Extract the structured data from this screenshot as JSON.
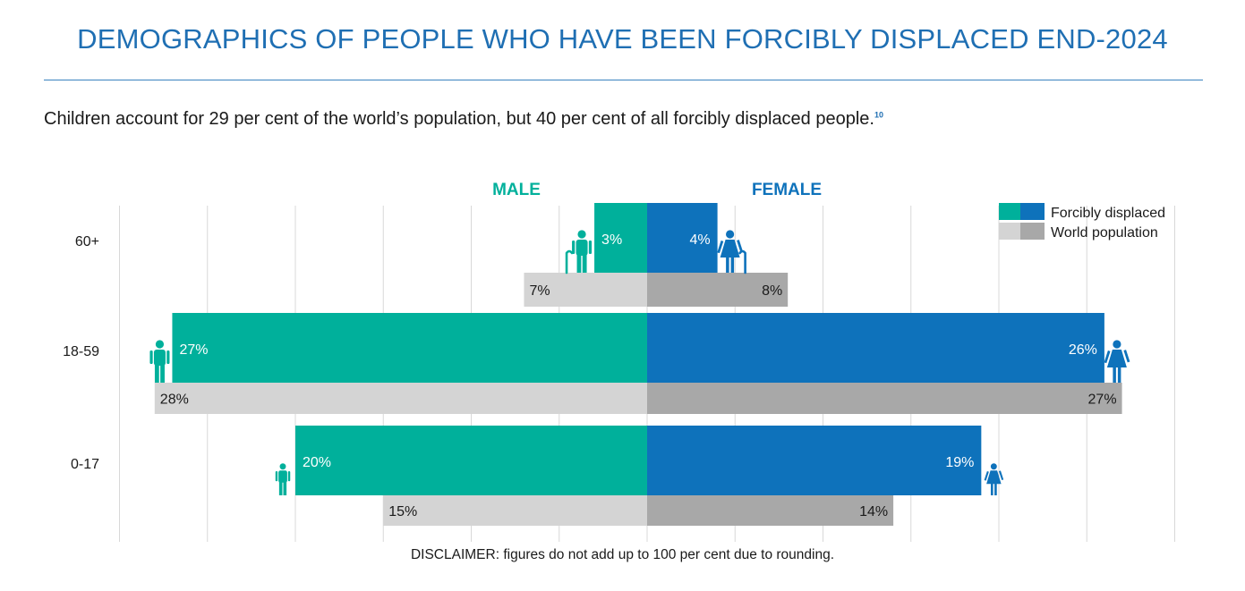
{
  "title": "DEMOGRAPHICS OF PEOPLE WHO HAVE BEEN FORCIBLY DISPLACED END-2024",
  "subtitle": "Children account for 29 per cent of the world’s population, but 40 per cent of all forcibly displaced people.",
  "subtitle_footnote": "10",
  "disclaimer": "DISCLAIMER: figures do not add up to 100 per cent due to rounding.",
  "colors": {
    "male_displaced": "#00b09b",
    "female_displaced": "#0e72bb",
    "male_world": "#d4d4d4",
    "female_world": "#a8a8a8",
    "grid": "#d8d8d8"
  },
  "chart_data": {
    "type": "bar",
    "orientation": "horizontal-diverging",
    "side_labels": {
      "male": "MALE",
      "female": "FEMALE"
    },
    "categories": [
      "60+",
      "18-59",
      "0-17"
    ],
    "series": [
      {
        "name": "Forcibly displaced",
        "group": "male",
        "values": [
          3,
          27,
          20
        ],
        "labels": [
          "3%",
          "27%",
          "20%"
        ]
      },
      {
        "name": "Forcibly displaced",
        "group": "female",
        "values": [
          4,
          26,
          19
        ],
        "labels": [
          "4%",
          "26%",
          "19%"
        ]
      },
      {
        "name": "World population",
        "group": "male",
        "values": [
          7,
          28,
          15
        ],
        "labels": [
          "7%",
          "28%",
          "15%"
        ]
      },
      {
        "name": "World population",
        "group": "female",
        "values": [
          8,
          27,
          14
        ],
        "labels": [
          "8%",
          "27%",
          "14%"
        ]
      }
    ],
    "legend": {
      "placement": "top-right",
      "entries": [
        "Forcibly displaced",
        "World population"
      ]
    },
    "xlim": [
      -30,
      30
    ],
    "grid": true
  }
}
